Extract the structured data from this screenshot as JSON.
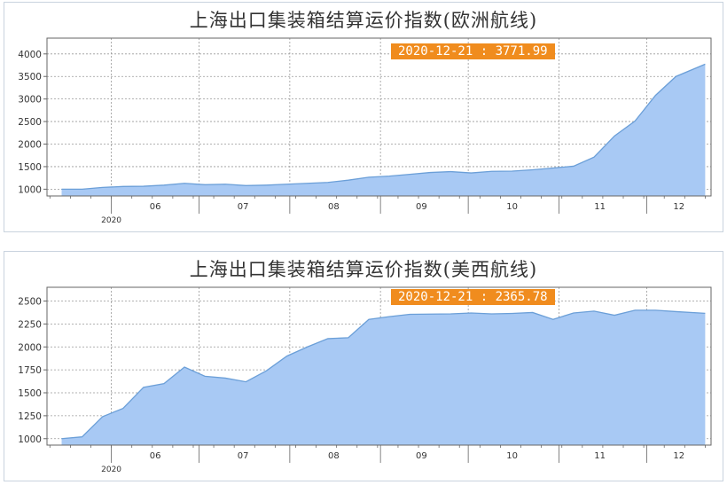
{
  "chart_data": [
    {
      "type": "area",
      "title": "上海出口集装箱结算运价指数(欧洲航线)",
      "annotation": "2020-12-21 : 3771.99",
      "year_label": "2020",
      "month_labels": [
        "06",
        "07",
        "08",
        "09",
        "10",
        "11",
        "12"
      ],
      "y_ticks": [
        1000,
        1500,
        2000,
        2500,
        3000,
        3500,
        4000
      ],
      "ylim": [
        850,
        4350
      ],
      "x": [
        "2020-05-15",
        "2020-05-22",
        "2020-05-29",
        "2020-06-05",
        "2020-06-12",
        "2020-06-19",
        "2020-06-26",
        "2020-07-03",
        "2020-07-10",
        "2020-07-17",
        "2020-07-24",
        "2020-07-31",
        "2020-08-07",
        "2020-08-14",
        "2020-08-21",
        "2020-08-28",
        "2020-09-04",
        "2020-09-11",
        "2020-09-18",
        "2020-09-25",
        "2020-10-02",
        "2020-10-09",
        "2020-10-16",
        "2020-10-23",
        "2020-10-30",
        "2020-11-06",
        "2020-11-13",
        "2020-11-20",
        "2020-11-27",
        "2020-12-04",
        "2020-12-11",
        "2020-12-21"
      ],
      "values": [
        1000,
        1000,
        1040,
        1060,
        1065,
        1090,
        1130,
        1100,
        1110,
        1080,
        1090,
        1110,
        1130,
        1150,
        1200,
        1265,
        1290,
        1330,
        1370,
        1390,
        1360,
        1395,
        1400,
        1430,
        1470,
        1510,
        1710,
        2180,
        2510,
        3080,
        3500,
        3771.99
      ],
      "colors": {
        "fill": "#a8c9f4",
        "line": "#6b9fd8",
        "grid": "#999999",
        "axis": "#666666",
        "badge": "#f08c1e"
      }
    },
    {
      "type": "area",
      "title": "上海出口集装箱结算运价指数(美西航线)",
      "annotation": "2020-12-21 : 2365.78",
      "year_label": "2020",
      "month_labels": [
        "06",
        "07",
        "08",
        "09",
        "10",
        "11",
        "12"
      ],
      "y_ticks": [
        1000,
        1250,
        1500,
        1750,
        2000,
        2250,
        2500
      ],
      "ylim": [
        930,
        2650
      ],
      "x": [
        "2020-05-15",
        "2020-05-22",
        "2020-05-29",
        "2020-06-05",
        "2020-06-12",
        "2020-06-19",
        "2020-06-26",
        "2020-07-03",
        "2020-07-10",
        "2020-07-17",
        "2020-07-24",
        "2020-07-31",
        "2020-08-07",
        "2020-08-14",
        "2020-08-21",
        "2020-08-28",
        "2020-09-04",
        "2020-09-11",
        "2020-09-18",
        "2020-09-25",
        "2020-10-02",
        "2020-10-09",
        "2020-10-16",
        "2020-10-23",
        "2020-10-30",
        "2020-11-06",
        "2020-11-13",
        "2020-11-20",
        "2020-11-27",
        "2020-12-04",
        "2020-12-11",
        "2020-12-21"
      ],
      "values": [
        1000,
        1020,
        1240,
        1330,
        1560,
        1600,
        1780,
        1680,
        1660,
        1620,
        1740,
        1900,
        2000,
        2090,
        2100,
        2300,
        2330,
        2355,
        2358,
        2360,
        2370,
        2360,
        2365,
        2375,
        2300,
        2370,
        2390,
        2345,
        2400,
        2400,
        2385,
        2365.78
      ],
      "colors": {
        "fill": "#a8c9f4",
        "line": "#6b9fd8",
        "grid": "#999999",
        "axis": "#666666",
        "badge": "#f08c1e"
      }
    }
  ]
}
